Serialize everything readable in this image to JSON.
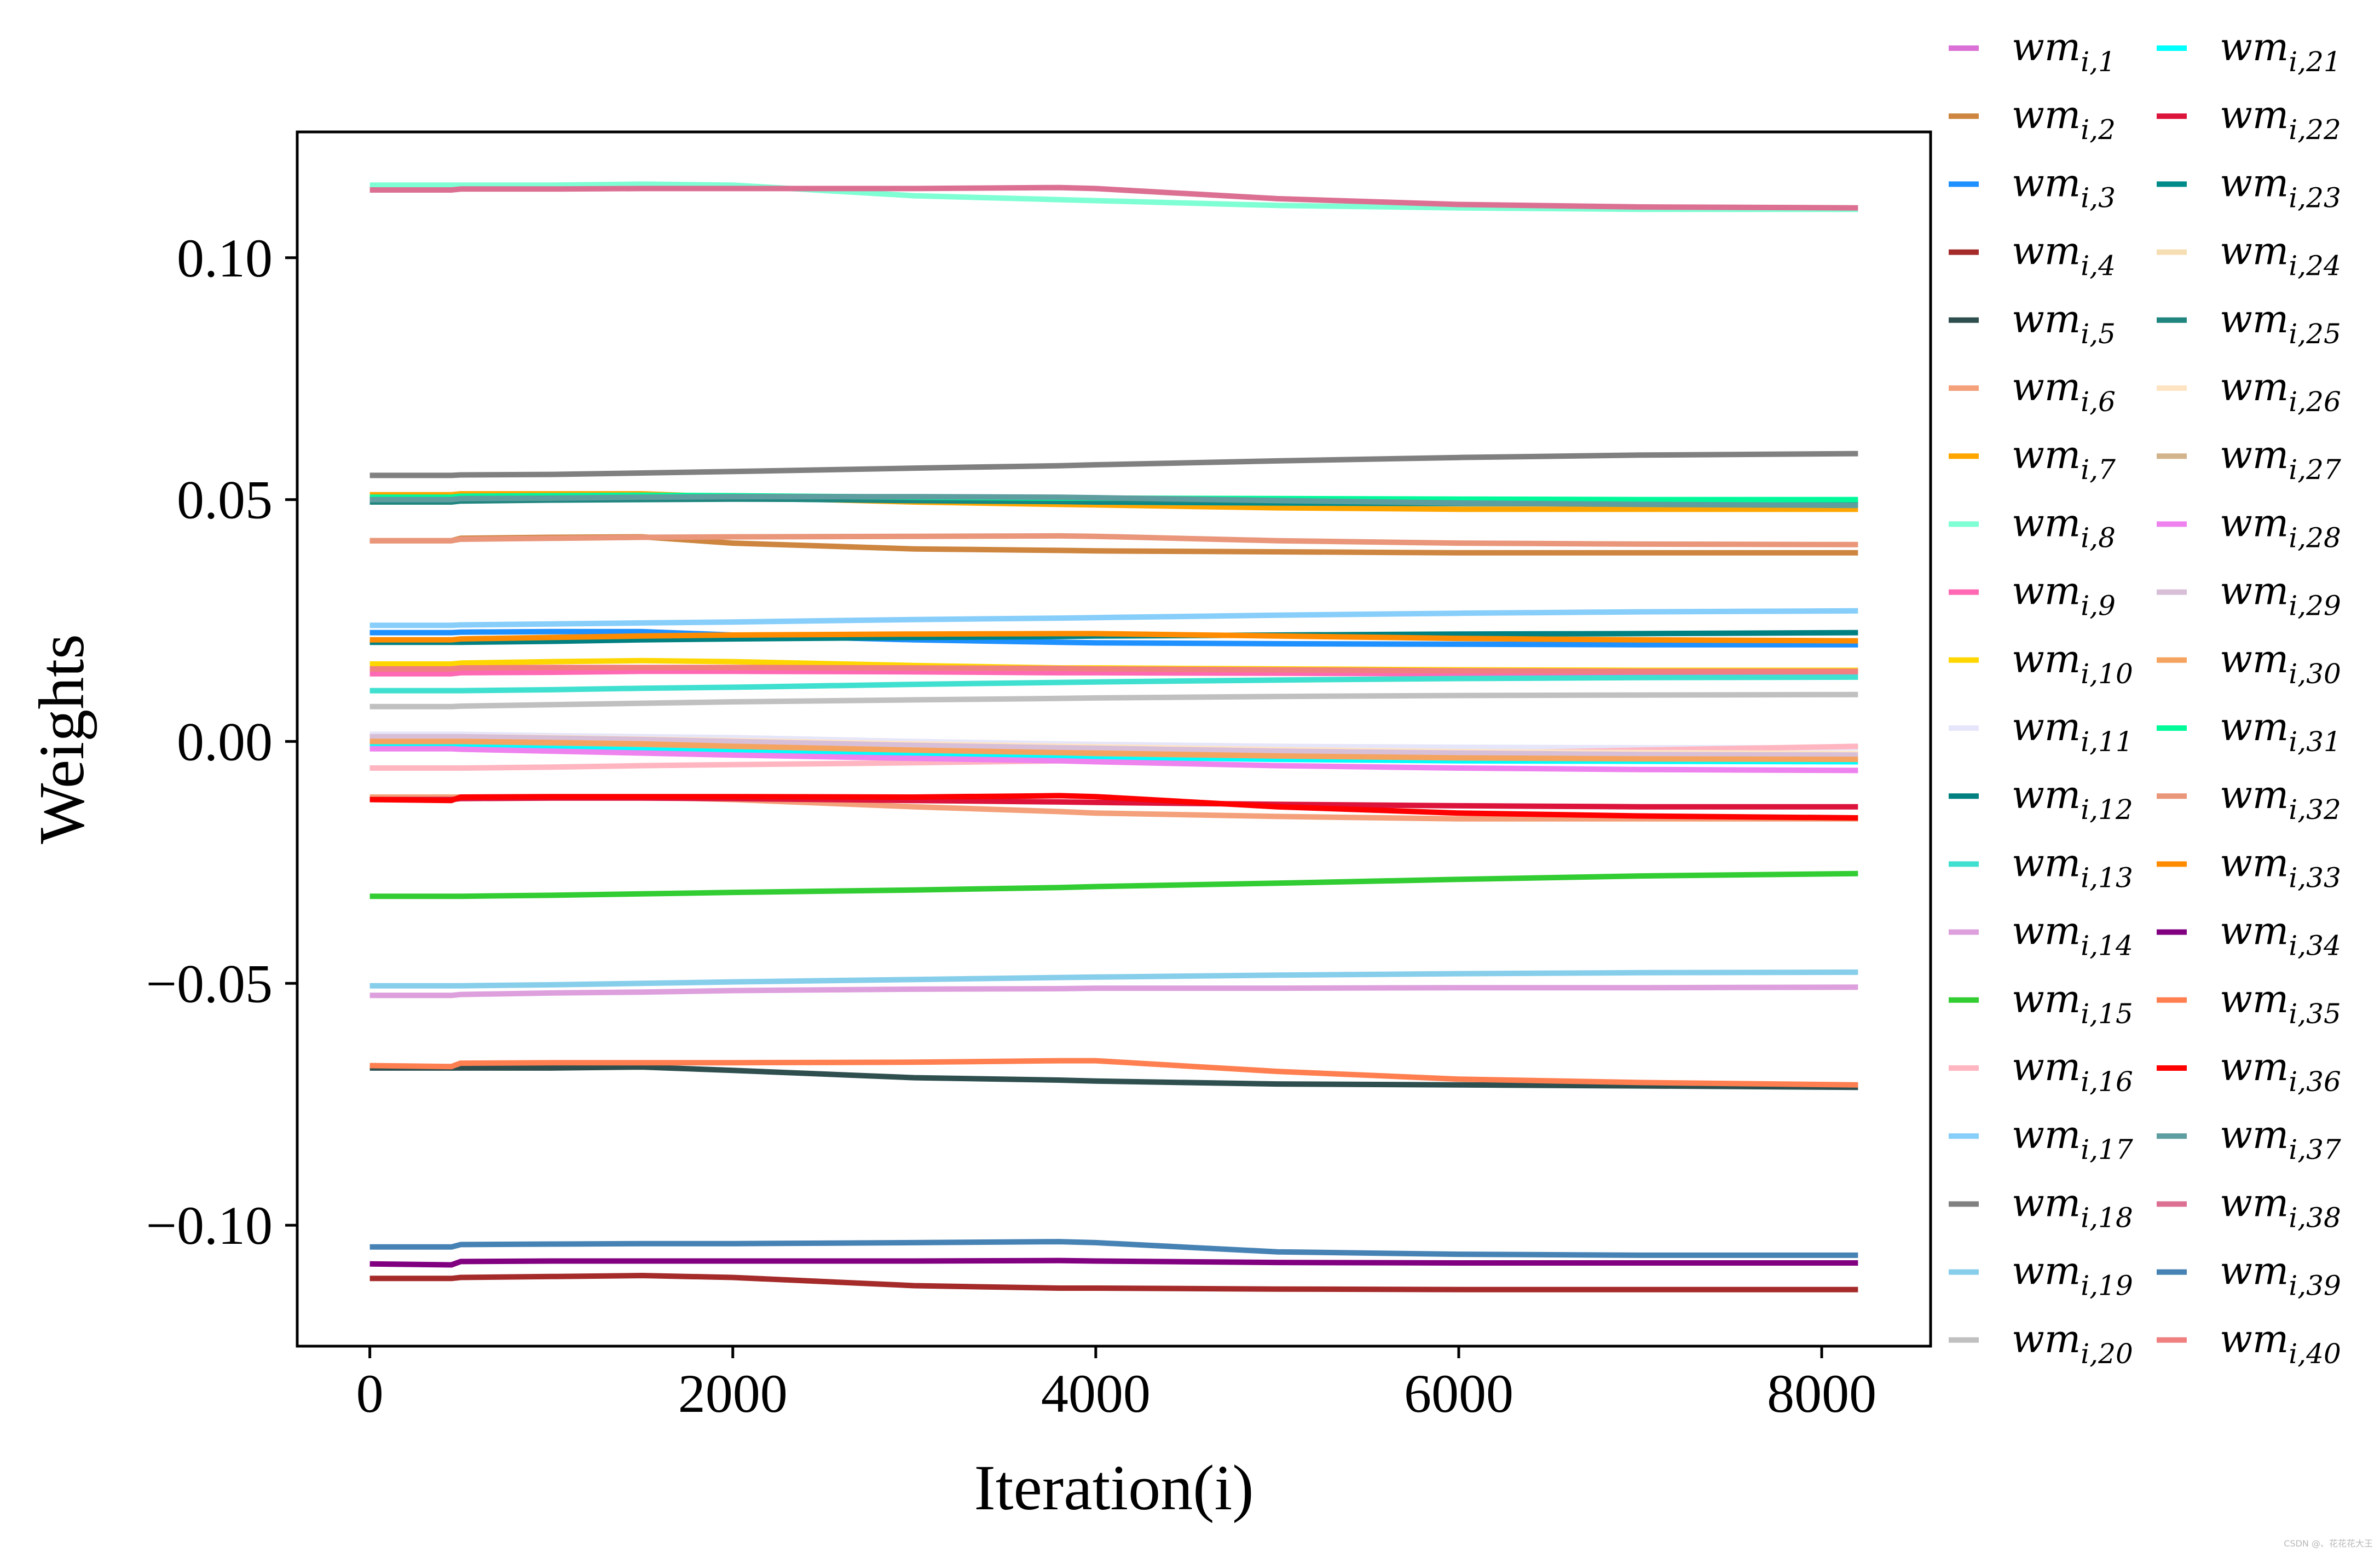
{
  "chart_data": {
    "type": "line",
    "title": "",
    "xlabel": "Iteration(i)",
    "ylabel": "Weights",
    "xlim": [
      -400,
      8600
    ],
    "ylim": [
      -0.125,
      0.126
    ],
    "xticks": [
      0,
      2000,
      4000,
      6000,
      8000
    ],
    "xtick_labels": [
      "0",
      "2000",
      "4000",
      "6000",
      "8000"
    ],
    "yticks": [
      0.1,
      0.05,
      0.0,
      -0.05,
      -0.1
    ],
    "ytick_labels": [
      "0.10",
      "0.05",
      "0.00",
      "−0.05",
      "−0.10"
    ],
    "grid": false,
    "legend_position": "outside-right",
    "legend_columns": 2,
    "x": [
      0,
      450,
      500,
      1000,
      1500,
      2000,
      3000,
      3800,
      4000,
      5000,
      6000,
      7000,
      8200
    ],
    "series": [
      {
        "name": "wm_{i,1}",
        "label_base": "wm",
        "label_sub": "i,1",
        "color": "#da70d6",
        "values": [
          0.0,
          0.0,
          0.0,
          -0.0005,
          -0.001,
          -0.0015,
          -0.002,
          -0.0025,
          -0.003,
          -0.0035,
          -0.0035,
          -0.0035,
          -0.0035
        ]
      },
      {
        "name": "wm_{i,2}",
        "label_base": "wm",
        "label_sub": "i,2",
        "color": "#cd853f",
        "values": [
          0.0415,
          0.0415,
          0.042,
          0.0422,
          0.0423,
          0.041,
          0.0398,
          0.0395,
          0.0394,
          0.0392,
          0.039,
          0.039,
          0.039
        ]
      },
      {
        "name": "wm_{i,3}",
        "label_base": "wm",
        "label_sub": "i,3",
        "color": "#1e90ff",
        "values": [
          0.0225,
          0.0225,
          0.0226,
          0.0227,
          0.0227,
          0.022,
          0.021,
          0.0205,
          0.0204,
          0.0202,
          0.0201,
          0.02,
          0.02
        ]
      },
      {
        "name": "wm_{i,4}",
        "label_base": "wm",
        "label_sub": "i,4",
        "color": "#a52a2a",
        "values": [
          -0.111,
          -0.111,
          -0.1108,
          -0.1106,
          -0.1104,
          -0.1108,
          -0.1125,
          -0.113,
          -0.113,
          -0.1132,
          -0.1133,
          -0.1133,
          -0.1133
        ]
      },
      {
        "name": "wm_{i,5}",
        "label_base": "wm",
        "label_sub": "i,5",
        "color": "#2f4f4f",
        "values": [
          -0.0675,
          -0.0675,
          -0.0675,
          -0.0675,
          -0.0673,
          -0.068,
          -0.0695,
          -0.07,
          -0.0702,
          -0.0708,
          -0.071,
          -0.0712,
          -0.0715
        ]
      },
      {
        "name": "wm_{i,6}",
        "label_base": "wm",
        "label_sub": "i,6",
        "color": "#f4a07a",
        "values": [
          -0.0115,
          -0.0115,
          -0.0115,
          -0.0115,
          -0.0115,
          -0.012,
          -0.0135,
          -0.0145,
          -0.0148,
          -0.0155,
          -0.016,
          -0.016,
          -0.016
        ]
      },
      {
        "name": "wm_{i,7}",
        "label_base": "wm",
        "label_sub": "i,7",
        "color": "#ffa500",
        "values": [
          0.051,
          0.051,
          0.0512,
          0.0512,
          0.0512,
          0.0505,
          0.0495,
          0.049,
          0.0489,
          0.0483,
          0.048,
          0.048,
          0.048
        ]
      },
      {
        "name": "wm_{i,8}",
        "label_base": "wm",
        "label_sub": "i,8",
        "color": "#7fffd4",
        "values": [
          0.115,
          0.115,
          0.115,
          0.115,
          0.1152,
          0.115,
          0.1128,
          0.112,
          0.1118,
          0.1108,
          0.1103,
          0.11,
          0.11
        ]
      },
      {
        "name": "wm_{i,9}",
        "label_base": "wm",
        "label_sub": "i,9",
        "color": "#ff69b4",
        "values": [
          0.014,
          0.014,
          0.0142,
          0.0143,
          0.0145,
          0.0145,
          0.0144,
          0.0142,
          0.0142,
          0.0141,
          0.014,
          0.014,
          0.014
        ]
      },
      {
        "name": "wm_{i,10}",
        "label_base": "wm",
        "label_sub": "i,10",
        "color": "#ffd700",
        "values": [
          0.016,
          0.016,
          0.0162,
          0.0165,
          0.0167,
          0.0165,
          0.0157,
          0.0152,
          0.0152,
          0.015,
          0.0148,
          0.0147,
          0.0147
        ]
      },
      {
        "name": "wm_{i,11}",
        "label_base": "wm",
        "label_sub": "i,11",
        "color": "#e6e6fa",
        "values": [
          0.0015,
          0.0015,
          0.0015,
          0.0012,
          0.001,
          0.0008,
          0.0,
          -0.0005,
          -0.0006,
          -0.001,
          -0.0012,
          -0.0013,
          -0.0013
        ]
      },
      {
        "name": "wm_{i,12}",
        "label_base": "wm",
        "label_sub": "i,12",
        "color": "#008080",
        "values": [
          0.0205,
          0.0205,
          0.0205,
          0.0207,
          0.021,
          0.0212,
          0.0215,
          0.0217,
          0.0218,
          0.022,
          0.0222,
          0.0223,
          0.0225
        ]
      },
      {
        "name": "wm_{i,13}",
        "label_base": "wm",
        "label_sub": "i,13",
        "color": "#40e0d0",
        "values": [
          0.0105,
          0.0105,
          0.0105,
          0.0107,
          0.011,
          0.0112,
          0.0118,
          0.0122,
          0.0123,
          0.0127,
          0.013,
          0.0132,
          0.0133
        ]
      },
      {
        "name": "wm_{i,14}",
        "label_base": "wm",
        "label_sub": "i,14",
        "color": "#dda0dd",
        "values": [
          -0.0525,
          -0.0525,
          -0.0523,
          -0.052,
          -0.0518,
          -0.0515,
          -0.0512,
          -0.0511,
          -0.051,
          -0.051,
          -0.0509,
          -0.0509,
          -0.0508
        ]
      },
      {
        "name": "wm_{i,15}",
        "label_base": "wm",
        "label_sub": "i,15",
        "color": "#32cd32",
        "values": [
          -0.032,
          -0.032,
          -0.032,
          -0.0318,
          -0.0315,
          -0.0312,
          -0.0307,
          -0.0302,
          -0.03,
          -0.0293,
          -0.0285,
          -0.0278,
          -0.0273
        ]
      },
      {
        "name": "wm_{i,16}",
        "label_base": "wm",
        "label_sub": "i,16",
        "color": "#ffb6c1",
        "values": [
          -0.0055,
          -0.0055,
          -0.0055,
          -0.0053,
          -0.005,
          -0.0048,
          -0.0044,
          -0.004,
          -0.0039,
          -0.0033,
          -0.0025,
          -0.0018,
          -0.001
        ]
      },
      {
        "name": "wm_{i,17}",
        "label_base": "wm",
        "label_sub": "i,17",
        "color": "#87cefa",
        "values": [
          0.024,
          0.024,
          0.0241,
          0.0243,
          0.0245,
          0.0247,
          0.0252,
          0.0255,
          0.0256,
          0.0261,
          0.0265,
          0.0268,
          0.027
        ]
      },
      {
        "name": "wm_{i,18}",
        "label_base": "wm",
        "label_sub": "i,18",
        "color": "#808080",
        "values": [
          0.055,
          0.055,
          0.0551,
          0.0552,
          0.0555,
          0.0558,
          0.0565,
          0.057,
          0.0572,
          0.058,
          0.0587,
          0.0592,
          0.0595
        ]
      },
      {
        "name": "wm_{i,19}",
        "label_base": "wm",
        "label_sub": "i,19",
        "color": "#87ceeb",
        "values": [
          -0.0505,
          -0.0505,
          -0.0505,
          -0.0503,
          -0.05,
          -0.0497,
          -0.0492,
          -0.0488,
          -0.0487,
          -0.0483,
          -0.048,
          -0.0478,
          -0.0477
        ]
      },
      {
        "name": "wm_{i,20}",
        "label_base": "wm",
        "label_sub": "i,20",
        "color": "#c0c0c0",
        "values": [
          0.0072,
          0.0072,
          0.0073,
          0.0076,
          0.0079,
          0.0082,
          0.0086,
          0.0089,
          0.009,
          0.0093,
          0.0095,
          0.0096,
          0.0097
        ]
      },
      {
        "name": "wm_{i,21}",
        "label_base": "wm",
        "label_sub": "i,21",
        "color": "#00ffff",
        "values": [
          -0.0005,
          -0.0005,
          -0.0006,
          -0.001,
          -0.0013,
          -0.0017,
          -0.0025,
          -0.003,
          -0.0032,
          -0.0037,
          -0.004,
          -0.0041,
          -0.0042
        ]
      },
      {
        "name": "wm_{i,22}",
        "label_base": "wm",
        "label_sub": "i,22",
        "color": "#dc143c",
        "values": [
          -0.012,
          -0.012,
          -0.0118,
          -0.0117,
          -0.0117,
          -0.0118,
          -0.0122,
          -0.0125,
          -0.0126,
          -0.013,
          -0.0133,
          -0.0135,
          -0.0135
        ]
      },
      {
        "name": "wm_{i,23}",
        "label_base": "wm",
        "label_sub": "i,23",
        "color": "#008b8b",
        "values": [
          0.05,
          0.05,
          0.0502,
          0.0503,
          0.0504,
          0.0502,
          0.0498,
          0.0496,
          0.0495,
          0.0493,
          0.0492,
          0.0491,
          0.049
        ]
      },
      {
        "name": "wm_{i,24}",
        "label_base": "wm",
        "label_sub": "i,24",
        "color": "#f5deb3",
        "values": [
          0.0005,
          0.0005,
          0.0005,
          0.0002,
          0.0,
          -0.0003,
          -0.001,
          -0.0015,
          -0.0016,
          -0.0022,
          -0.0026,
          -0.0028,
          -0.003
        ]
      },
      {
        "name": "wm_{i,25}",
        "label_base": "wm",
        "label_sub": "i,25",
        "color": "#20857f",
        "values": [
          0.0495,
          0.0495,
          0.0497,
          0.0499,
          0.05,
          0.0501,
          0.05,
          0.0499,
          0.0499,
          0.0497,
          0.0496,
          0.0495,
          0.0495
        ]
      },
      {
        "name": "wm_{i,26}",
        "label_base": "wm",
        "label_sub": "i,26",
        "color": "#ffe4c4",
        "values": [
          0.001,
          0.001,
          0.001,
          0.0008,
          0.0005,
          0.0002,
          -0.0005,
          -0.001,
          -0.0011,
          -0.0017,
          -0.0021,
          -0.0023,
          -0.0025
        ]
      },
      {
        "name": "wm_{i,27}",
        "label_base": "wm",
        "label_sub": "i,27",
        "color": "#d2b48c",
        "values": [
          0.0,
          0.0,
          0.0,
          -0.0003,
          -0.0006,
          -0.001,
          -0.0018,
          -0.0023,
          -0.0025,
          -0.003,
          -0.0033,
          -0.0035,
          -0.0035
        ]
      },
      {
        "name": "wm_{i,28}",
        "label_base": "wm",
        "label_sub": "i,28",
        "color": "#ee82ee",
        "values": [
          -0.0015,
          -0.0015,
          -0.0016,
          -0.002,
          -0.0024,
          -0.0028,
          -0.0035,
          -0.004,
          -0.0042,
          -0.005,
          -0.0055,
          -0.0058,
          -0.006
        ]
      },
      {
        "name": "wm_{i,29}",
        "label_base": "wm",
        "label_sub": "i,29",
        "color": "#d8bfd8",
        "values": [
          0.001,
          0.001,
          0.001,
          0.0007,
          0.0004,
          0.0,
          -0.0008,
          -0.0013,
          -0.0014,
          -0.002,
          -0.0024,
          -0.0027,
          -0.0028
        ]
      },
      {
        "name": "wm_{i,30}",
        "label_base": "wm",
        "label_sub": "i,30",
        "color": "#f4a460",
        "values": [
          0.0,
          0.0,
          0.0,
          -0.0002,
          -0.0005,
          -0.001,
          -0.0018,
          -0.0023,
          -0.0024,
          -0.003,
          -0.0034,
          -0.0036,
          -0.0037
        ]
      },
      {
        "name": "wm_{i,31}",
        "label_base": "wm",
        "label_sub": "i,31",
        "color": "#00fa9a",
        "values": [
          0.0505,
          0.0505,
          0.0507,
          0.0508,
          0.0509,
          0.0508,
          0.0505,
          0.0503,
          0.0503,
          0.0502,
          0.0501,
          0.05,
          0.05
        ]
      },
      {
        "name": "wm_{i,32}",
        "label_base": "wm",
        "label_sub": "i,32",
        "color": "#e9967a",
        "values": [
          0.0415,
          0.0415,
          0.0418,
          0.042,
          0.0422,
          0.0423,
          0.0424,
          0.0425,
          0.0424,
          0.0415,
          0.041,
          0.0408,
          0.0407
        ]
      },
      {
        "name": "wm_{i,33}",
        "label_base": "wm",
        "label_sub": "i,33",
        "color": "#ff8c00",
        "values": [
          0.021,
          0.021,
          0.0212,
          0.0215,
          0.0218,
          0.022,
          0.0222,
          0.0223,
          0.0223,
          0.0218,
          0.0213,
          0.021,
          0.0208
        ]
      },
      {
        "name": "wm_{i,34}",
        "label_base": "wm",
        "label_sub": "i,34",
        "color": "#800080",
        "values": [
          -0.108,
          -0.1082,
          -0.1075,
          -0.1074,
          -0.1074,
          -0.1074,
          -0.1074,
          -0.1073,
          -0.1074,
          -0.1077,
          -0.1078,
          -0.1078,
          -0.1078
        ]
      },
      {
        "name": "wm_{i,35}",
        "label_base": "wm",
        "label_sub": "i,35",
        "color": "#ff7f50",
        "values": [
          -0.067,
          -0.0672,
          -0.0665,
          -0.0664,
          -0.0664,
          -0.0664,
          -0.0663,
          -0.066,
          -0.066,
          -0.0682,
          -0.0698,
          -0.0705,
          -0.071
        ]
      },
      {
        "name": "wm_{i,36}",
        "label_base": "wm",
        "label_sub": "i,36",
        "color": "#ff0000",
        "values": [
          -0.012,
          -0.0122,
          -0.0115,
          -0.0114,
          -0.0114,
          -0.0114,
          -0.0115,
          -0.0112,
          -0.0114,
          -0.0135,
          -0.0148,
          -0.0154,
          -0.0158
        ]
      },
      {
        "name": "wm_{i,37}",
        "label_base": "wm",
        "label_sub": "i,37",
        "color": "#5f9ea0",
        "values": [
          0.05,
          0.05,
          0.0502,
          0.0503,
          0.0505,
          0.0506,
          0.0506,
          0.0505,
          0.0504,
          0.0498,
          0.0493,
          0.049,
          0.0488
        ]
      },
      {
        "name": "wm_{i,38}",
        "label_base": "wm",
        "label_sub": "i,38",
        "color": "#db7093",
        "values": [
          0.114,
          0.114,
          0.1142,
          0.1142,
          0.1143,
          0.1143,
          0.1143,
          0.1145,
          0.1143,
          0.1122,
          0.111,
          0.1105,
          0.1103
        ]
      },
      {
        "name": "wm_{i,39}",
        "label_base": "wm",
        "label_sub": "i,39",
        "color": "#4682b4",
        "values": [
          -0.1045,
          -0.1045,
          -0.104,
          -0.1039,
          -0.1038,
          -0.1038,
          -0.1036,
          -0.1034,
          -0.1036,
          -0.1055,
          -0.106,
          -0.1062,
          -0.1062
        ]
      },
      {
        "name": "wm_{i,40}",
        "label_base": "wm",
        "label_sub": "i,40",
        "color": "#f08080",
        "values": [
          0.015,
          0.015,
          0.0152,
          0.0153,
          0.0153,
          0.0153,
          0.0152,
          0.0151,
          0.015,
          0.0148,
          0.0146,
          0.0145,
          0.0145
        ]
      }
    ],
    "watermark": "CSDN @、花花花大王"
  }
}
